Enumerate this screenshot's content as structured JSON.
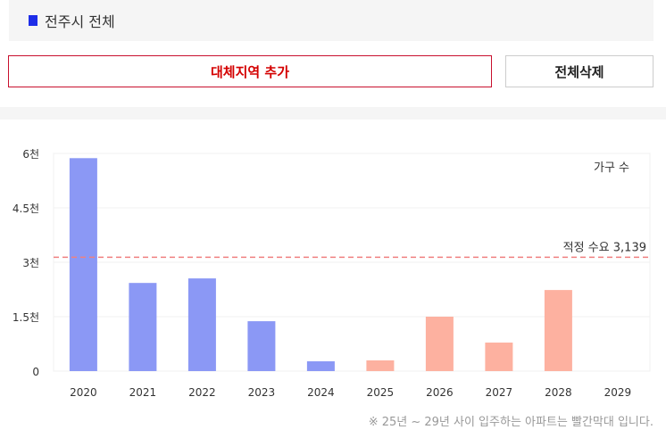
{
  "region": {
    "label": "전주시 전체",
    "marker_color": "#1e2de8"
  },
  "buttons": {
    "add_alt": "대체지역 추가",
    "delete_all": "전체삭제"
  },
  "chart_data": {
    "type": "bar",
    "legend_label": "가구 수",
    "categories": [
      "2020",
      "2021",
      "2022",
      "2023",
      "2024",
      "2025",
      "2026",
      "2027",
      "2028",
      "2029"
    ],
    "values": [
      5870,
      2430,
      2555,
      1375,
      270,
      295,
      1500,
      786,
      2235,
      0
    ],
    "colors": [
      "#8b98f5",
      "#8b98f5",
      "#8b98f5",
      "#8b98f5",
      "#8b98f5",
      "#fdb1a0",
      "#fdb1a0",
      "#fdb1a0",
      "#fdb1a0",
      "#fdb1a0"
    ],
    "ylim": [
      0,
      6000
    ],
    "yticks": [
      0,
      1500,
      3000,
      4500,
      6000
    ],
    "ytick_labels": [
      "0",
      "1.5천",
      "3천",
      "4.5천",
      "6천"
    ],
    "reference_line": {
      "value": 3139,
      "label": "적정 수요 3,139",
      "color": "#f08080"
    },
    "grid": true
  },
  "footnote": "※ 25년 ~ 29년 사이 입주하는 아파트는 빨간막대 입니다."
}
